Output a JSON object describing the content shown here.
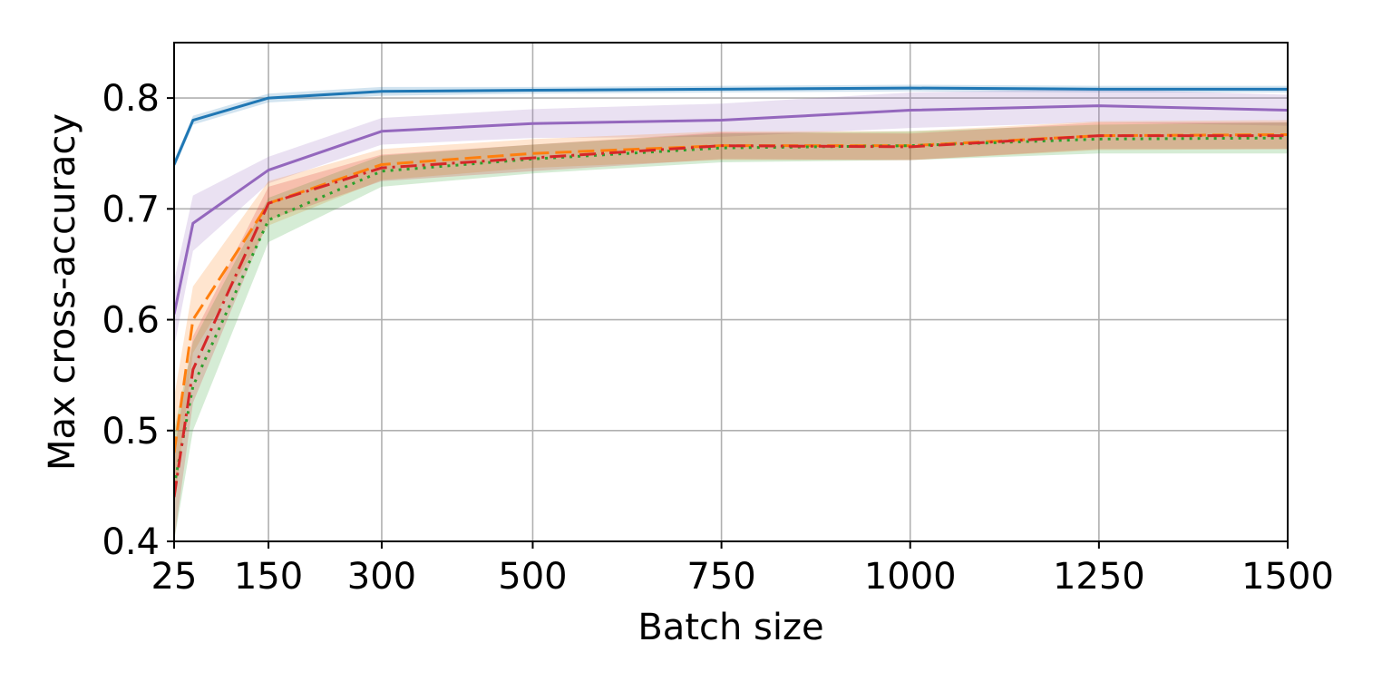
{
  "chart_data": {
    "type": "line",
    "xlabel": "Batch size",
    "ylabel": "Max cross-accuracy",
    "xlim": [
      25,
      1500
    ],
    "ylim": [
      0.4,
      0.85
    ],
    "xticks": [
      25,
      150,
      300,
      500,
      750,
      1000,
      1250,
      1500
    ],
    "xtick_labels": [
      "25",
      "150",
      "300",
      "500",
      "750",
      "1000",
      "1250",
      "1500"
    ],
    "yticks": [
      0.4,
      0.5,
      0.6,
      0.7,
      0.8
    ],
    "ytick_labels": [
      "0.4",
      "0.5",
      "0.6",
      "0.7",
      "0.8"
    ],
    "grid": true,
    "legend": false,
    "x": [
      25,
      50,
      150,
      300,
      500,
      750,
      1000,
      1250,
      1500
    ],
    "series": [
      {
        "color": "#1f77b4",
        "linestyle": "solid",
        "values": [
          0.74,
          0.78,
          0.8,
          0.806,
          0.807,
          0.808,
          0.809,
          0.808,
          0.808
        ],
        "band": [
          0.004,
          0.004,
          0.004,
          0.004,
          0.003,
          0.003,
          0.003,
          0.003,
          0.003
        ]
      },
      {
        "color": "#9467bd",
        "linestyle": "solid",
        "values": [
          0.605,
          0.687,
          0.735,
          0.77,
          0.777,
          0.78,
          0.789,
          0.793,
          0.789
        ],
        "band": [
          0.03,
          0.025,
          0.012,
          0.012,
          0.013,
          0.015,
          0.016,
          0.015,
          0.014
        ]
      },
      {
        "color": "#ff7f0e",
        "linestyle": "dashed",
        "values": [
          0.48,
          0.6,
          0.705,
          0.74,
          0.75,
          0.757,
          0.757,
          0.766,
          0.767
        ],
        "band": [
          0.05,
          0.03,
          0.02,
          0.014,
          0.013,
          0.013,
          0.013,
          0.013,
          0.013
        ]
      },
      {
        "color": "#2ca02c",
        "linestyle": "dotted",
        "values": [
          0.45,
          0.54,
          0.69,
          0.734,
          0.745,
          0.755,
          0.757,
          0.763,
          0.764
        ],
        "band": [
          0.05,
          0.04,
          0.02,
          0.014,
          0.013,
          0.013,
          0.013,
          0.013,
          0.014
        ]
      },
      {
        "color": "#d62728",
        "linestyle": "dashdot",
        "values": [
          0.44,
          0.555,
          0.705,
          0.737,
          0.746,
          0.757,
          0.756,
          0.766,
          0.766
        ],
        "band": [
          0.04,
          0.03,
          0.015,
          0.012,
          0.012,
          0.012,
          0.012,
          0.012,
          0.012
        ]
      }
    ]
  }
}
